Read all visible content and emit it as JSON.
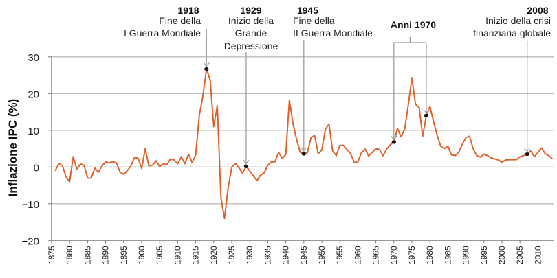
{
  "chart_data": {
    "type": "line",
    "title": "",
    "xlabel": "",
    "ylabel": "Inflazione IPC (%)",
    "xlim": [
      1875,
      2014
    ],
    "ylim": [
      -20,
      30
    ],
    "yticks": [
      30,
      20,
      10,
      0,
      -10,
      -20
    ],
    "xticks": [
      1875,
      1880,
      1885,
      1890,
      1895,
      1900,
      1905,
      1910,
      1915,
      1920,
      1925,
      1930,
      1935,
      1940,
      1945,
      1950,
      1955,
      1960,
      1965,
      1970,
      1975,
      1980,
      1985,
      1990,
      1995,
      2000,
      2005,
      2010
    ],
    "grid": "horizontal",
    "colors": {
      "line": "#e0622a",
      "grid": "#bdbdbd",
      "marker": "#111111",
      "annotation_line": "#9e9e9e"
    },
    "start_year": 1876,
    "values": [
      -1,
      0.9,
      0.4,
      -2.7,
      -4,
      2.8,
      -0.6,
      0.8,
      0.5,
      -3,
      -3,
      -0.3,
      -1.4,
      0.3,
      1.4,
      1.1,
      1.5,
      1.1,
      -1.4,
      -2,
      -1,
      0.3,
      2.6,
      2.4,
      -0.4,
      5,
      0.3,
      0.5,
      1.7,
      0.1,
      1,
      0.6,
      2.2,
      1.9,
      0.9,
      2.8,
      0.9,
      3.5,
      1.2,
      3.3,
      14,
      19.4,
      26.7,
      23.7,
      11,
      16.7,
      -8.4,
      -14,
      -5.6,
      -0.1,
      1,
      -0.2,
      -1.7,
      0.2,
      -1.1,
      -2.4,
      -3.7,
      -2.2,
      -1.6,
      0.5,
      1.4,
      1.4,
      4.0,
      2.4,
      3.4,
      18.2,
      11.8,
      7.5,
      4.0,
      3.6,
      3.9,
      8.0,
      8.6,
      3.6,
      4.7,
      10.3,
      11.7,
      4.4,
      3.1,
      5.9,
      5.9,
      4.7,
      3.6,
      1.2,
      1.4,
      3.9,
      4.9,
      3.0,
      4.0,
      5.0,
      4.8,
      3.1,
      4.9,
      6.1,
      6.8,
      10.5,
      8.2,
      10.3,
      17,
      24.3,
      17.1,
      16.2,
      8.4,
      14.0,
      16.5,
      12.4,
      8.7,
      5.7,
      5.0,
      5.7,
      3.3,
      3.1,
      4.0,
      6.2,
      8.0,
      8.4,
      5.0,
      3.1,
      2.7,
      3.5,
      3.1,
      2.5,
      2.2,
      1.9,
      1.3,
      1.9,
      2.0,
      2.0,
      2.0,
      2.8,
      3.1,
      3.5,
      4.4,
      2.8,
      4.0,
      5.2,
      3.6,
      3.1,
      2.2
    ],
    "annotations": [
      {
        "year_label": "1918",
        "lines": [
          "Fine della",
          "I Guerra Mondiale"
        ],
        "year": 1918
      },
      {
        "year_label": "1929",
        "lines": [
          "Inizio della",
          "Grande",
          "Depressione"
        ],
        "year": 1929
      },
      {
        "year_label": "1945",
        "lines": [
          "Fine della",
          "II Guerra Mondiale"
        ],
        "year": 1945
      },
      {
        "year_label": "Anni 1970",
        "lines": [],
        "years": [
          1970,
          1979
        ]
      },
      {
        "year_label": "2008",
        "lines": [
          "Inizio della crisi",
          "finanziaria globale"
        ],
        "year": 2007
      }
    ]
  }
}
